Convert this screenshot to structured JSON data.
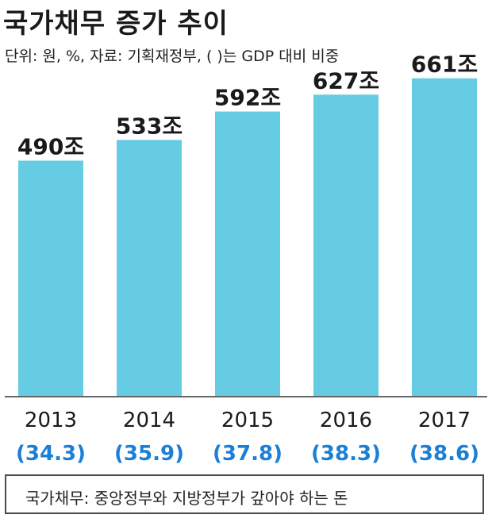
{
  "title": "국가채무 증가 추이",
  "subtitle": "단위: 원, %, 자료: 기획재정부, (   )는 GDP 대비 비중",
  "footnote": "국가채무: 중앙정부와 지방정부가 갚아야 하는 돈",
  "colors": {
    "bar": "#66cce4",
    "ratio": "#1a7fd6",
    "axis": "#666666"
  },
  "chart_data": {
    "type": "bar",
    "categories": [
      "2013",
      "2014",
      "2015",
      "2016",
      "2017"
    ],
    "values": [
      490,
      533,
      592,
      627,
      661
    ],
    "value_labels": [
      "490조",
      "533조",
      "592조",
      "627조",
      "661조"
    ],
    "gdp_ratio_labels": [
      "(34.3)",
      "(35.9)",
      "(37.8)",
      "(38.3)",
      "(38.6)"
    ],
    "gdp_ratio": [
      34.3,
      35.9,
      37.8,
      38.3,
      38.6
    ],
    "ylim": [
      0,
      700
    ],
    "grid": false,
    "xlabel": "",
    "ylabel": ""
  }
}
